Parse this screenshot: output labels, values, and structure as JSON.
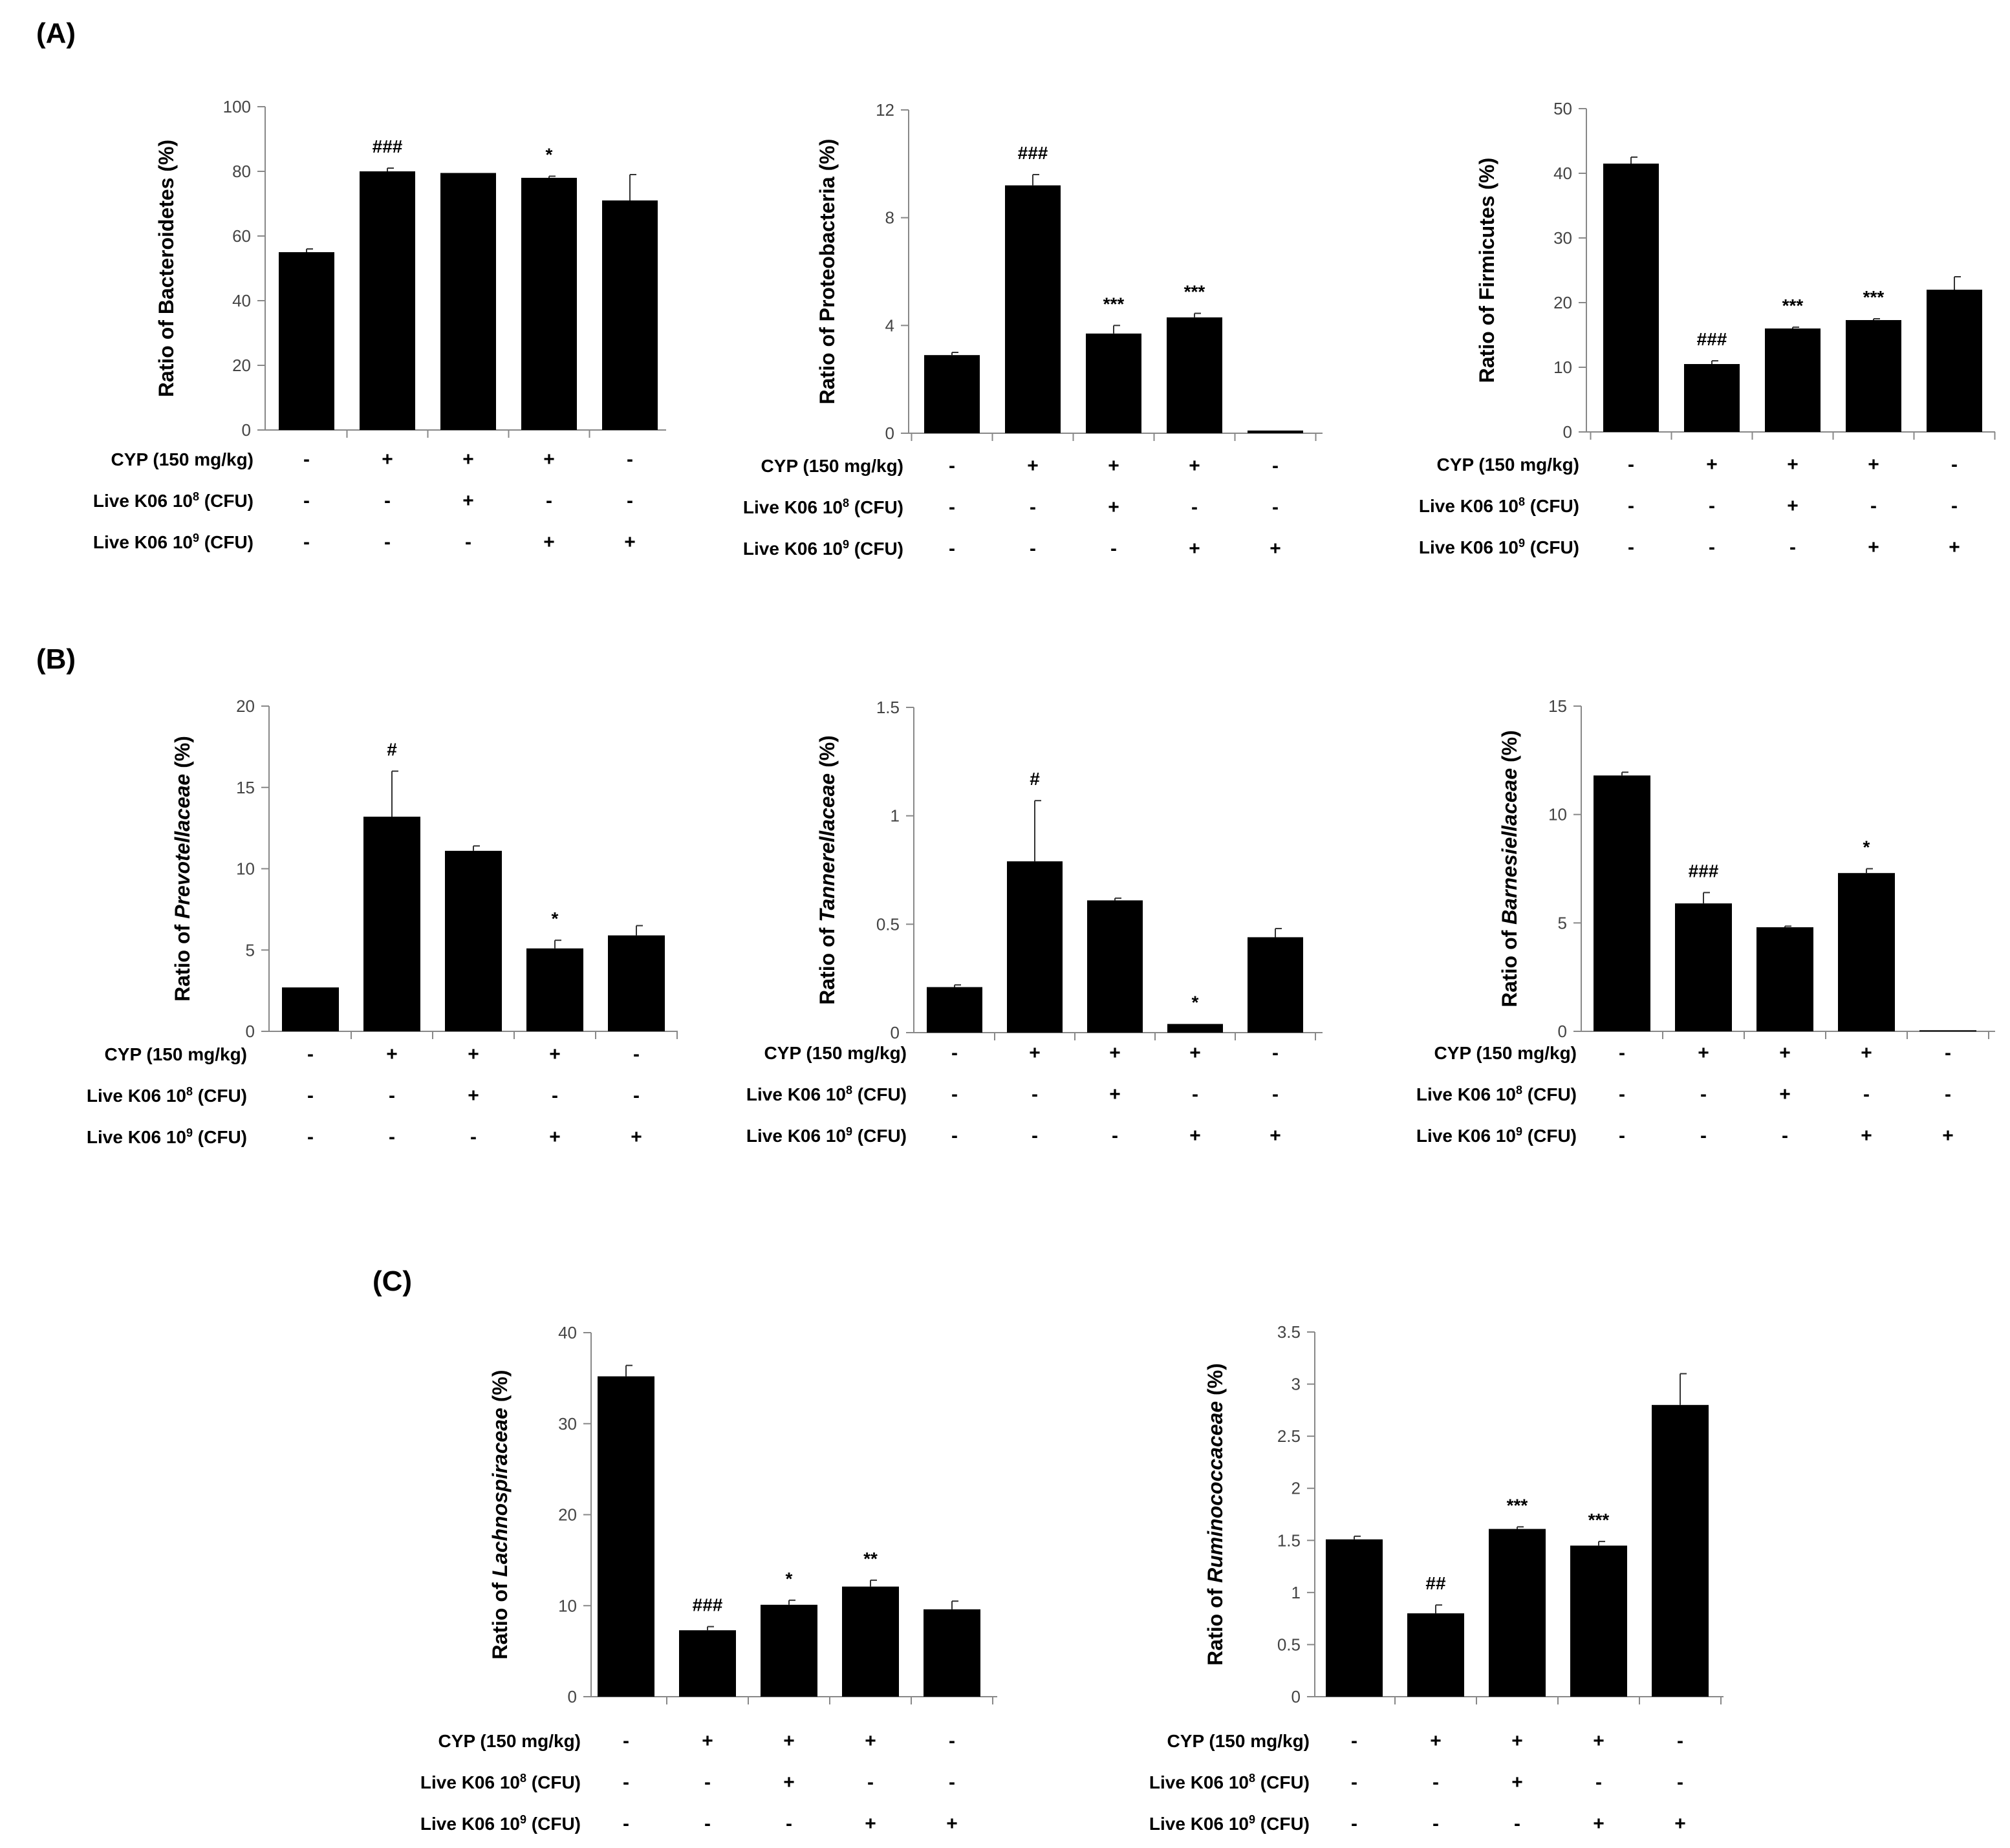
{
  "colors": {
    "bar": "#000000",
    "axis": "#888888",
    "text": "#000000"
  },
  "panel_labels": [
    "(A)",
    "(B)",
    "(C)"
  ],
  "treatment_rows": [
    {
      "label": "CYP (150 mg/kg)",
      "signs": [
        "-",
        "+",
        "+",
        "+",
        "-"
      ]
    },
    {
      "label_prefix": "Live K06 10",
      "label_sup": "8",
      "label_suffix": " (CFU)",
      "signs": [
        "-",
        "-",
        "+",
        "-",
        "-"
      ]
    },
    {
      "label_prefix": "Live K06 10",
      "label_sup": "9",
      "label_suffix": " (CFU)",
      "signs": [
        "-",
        "-",
        "-",
        "+",
        "+"
      ]
    }
  ],
  "chart_data": [
    {
      "id": "bacteroidetes",
      "panel": "A",
      "type": "bar",
      "ylabel_prefix": "Ratio of ",
      "ylabel_taxon": "Bacteroidetes",
      "ylabel_suffix": " (%)",
      "italic": false,
      "ylim": [
        0,
        100
      ],
      "yticks": [
        "0",
        "20",
        "40",
        "60",
        "80",
        "100"
      ],
      "values": [
        55,
        80,
        79.5,
        78,
        71
      ],
      "errors": [
        1,
        1,
        0,
        0.5,
        8
      ],
      "annotations": [
        "",
        "###",
        "",
        "*",
        ""
      ]
    },
    {
      "id": "proteobacteria",
      "panel": "A",
      "type": "bar",
      "ylabel_prefix": "Ratio of ",
      "ylabel_taxon": "Proteobacteria",
      "ylabel_suffix": "  (%)",
      "italic": false,
      "ylim": [
        0,
        12
      ],
      "yticks": [
        "0",
        "4",
        "8",
        "12"
      ],
      "values": [
        2.9,
        9.2,
        3.7,
        4.3,
        0.1
      ],
      "errors": [
        0.1,
        0.4,
        0.3,
        0.15,
        0
      ],
      "annotations": [
        "",
        "###",
        "***",
        "***",
        ""
      ]
    },
    {
      "id": "firmicutes",
      "panel": "A",
      "type": "bar",
      "ylabel_prefix": "Ratio of ",
      "ylabel_taxon": "Firmicutes",
      "ylabel_suffix": "  (%)",
      "italic": false,
      "ylim": [
        0,
        50
      ],
      "yticks": [
        "0",
        "10",
        "20",
        "30",
        "40",
        "50"
      ],
      "values": [
        41.5,
        10.5,
        16,
        17.3,
        22
      ],
      "errors": [
        1,
        0.5,
        0.2,
        0.2,
        2
      ],
      "annotations": [
        "",
        "###",
        "***",
        "***",
        ""
      ]
    },
    {
      "id": "prevotellaceae",
      "panel": "B",
      "type": "bar",
      "ylabel_prefix": "Ratio of ",
      "ylabel_taxon": "Prevotellaceae",
      "ylabel_suffix": " (%)",
      "italic": true,
      "ylim": [
        0,
        20
      ],
      "yticks": [
        "0",
        "5",
        "10",
        "15",
        "20"
      ],
      "values": [
        2.7,
        13.2,
        11.1,
        5.1,
        5.9
      ],
      "errors": [
        0,
        2.8,
        0.3,
        0.5,
        0.6
      ],
      "annotations": [
        "",
        "#",
        "",
        "*",
        ""
      ]
    },
    {
      "id": "tannerellaceae",
      "panel": "B",
      "type": "bar",
      "ylabel_prefix": "Ratio of ",
      "ylabel_taxon": "Tannerellaceae",
      "ylabel_suffix": " (%)",
      "italic": true,
      "ylim": [
        0,
        1.5
      ],
      "yticks": [
        "0",
        "0.5",
        "1",
        "1.5"
      ],
      "values": [
        0.21,
        0.79,
        0.61,
        0.04,
        0.44
      ],
      "errors": [
        0.01,
        0.28,
        0.01,
        0,
        0.04
      ],
      "annotations": [
        "",
        "#",
        "",
        "*",
        ""
      ]
    },
    {
      "id": "barnesiellaceae",
      "panel": "B",
      "type": "bar",
      "ylabel_prefix": "Ratio of ",
      "ylabel_taxon": "Barnesiellaceae",
      "ylabel_suffix": " (%)",
      "italic": true,
      "ylim": [
        0,
        15
      ],
      "yticks": [
        "0",
        "5",
        "10",
        "15"
      ],
      "values": [
        11.8,
        5.9,
        4.8,
        7.3,
        0.05
      ],
      "errors": [
        0.15,
        0.5,
        0.05,
        0.2,
        0
      ],
      "annotations": [
        "",
        "###",
        "",
        "*",
        ""
      ]
    },
    {
      "id": "lachnospiraceae",
      "panel": "C",
      "type": "bar",
      "ylabel_prefix": "Ratio of ",
      "ylabel_taxon": "Lachnospiraceae",
      "ylabel_suffix": " (%)",
      "italic": true,
      "ylim": [
        0,
        40
      ],
      "yticks": [
        "0",
        "10",
        "20",
        "30",
        "40"
      ],
      "values": [
        35.2,
        7.3,
        10.1,
        12.1,
        9.6
      ],
      "errors": [
        1.2,
        0.4,
        0.5,
        0.7,
        0.9
      ],
      "annotations": [
        "",
        "###",
        "*",
        "**",
        ""
      ]
    },
    {
      "id": "ruminococcaceae",
      "panel": "C",
      "type": "bar",
      "ylabel_prefix": "Ratio of ",
      "ylabel_taxon": "Ruminococcaceae",
      "ylabel_suffix": " (%)",
      "italic": true,
      "ylim": [
        0,
        3.5
      ],
      "yticks": [
        "0",
        "0.5",
        "1",
        "1.5",
        "2",
        "2.5",
        "3",
        "3.5"
      ],
      "values": [
        1.51,
        0.8,
        1.61,
        1.45,
        2.8
      ],
      "errors": [
        0.03,
        0.08,
        0.02,
        0.04,
        0.3
      ],
      "annotations": [
        "",
        "##",
        "***",
        "***",
        ""
      ]
    }
  ]
}
